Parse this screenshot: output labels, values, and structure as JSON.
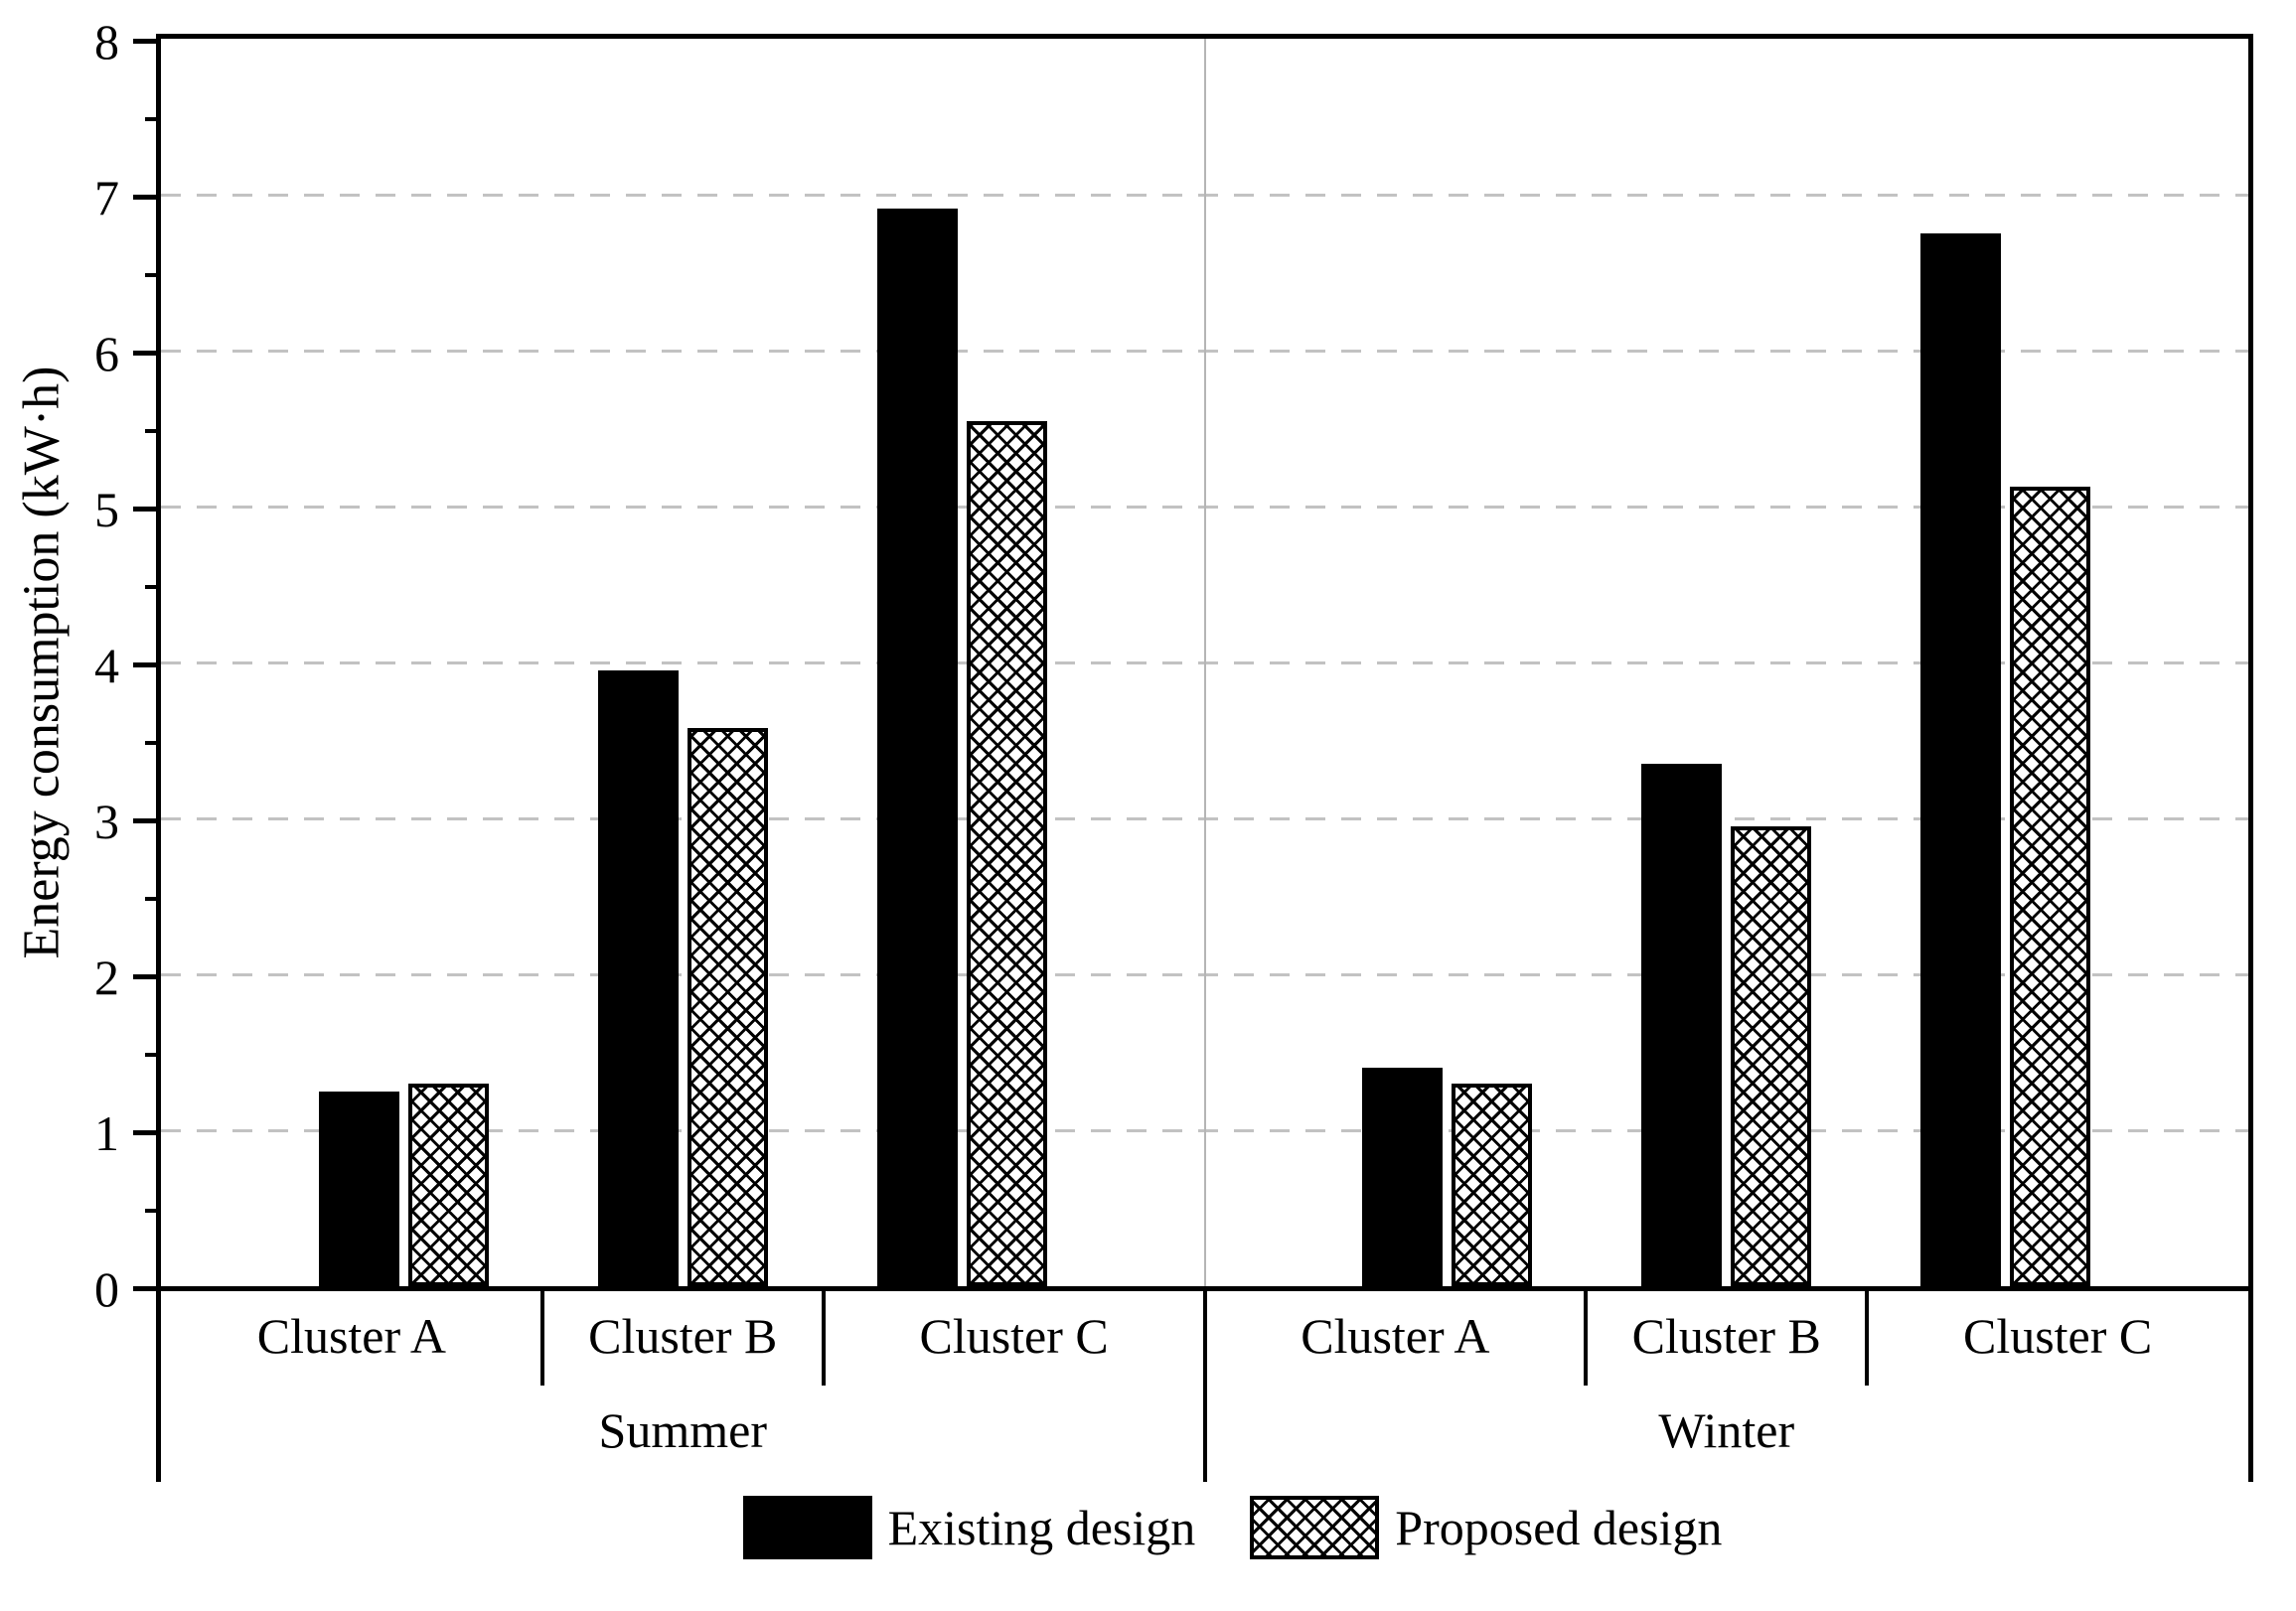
{
  "chart_data": {
    "type": "bar",
    "title": "",
    "ylabel": "Energy consumption (kW·h)",
    "xlabel": "",
    "ylim": [
      0,
      8
    ],
    "ytick_step": 1,
    "minor_tick_step": 0.5,
    "grid": "horizontal dashed lines at integer values",
    "panels": [
      "Summer",
      "Winter"
    ],
    "categories": [
      "Cluster A",
      "Cluster B",
      "Cluster C"
    ],
    "series": [
      {
        "name": "Existing design",
        "style": "solid-black",
        "values": [
          [
            1.25,
            3.95,
            6.91
          ],
          [
            1.4,
            3.35,
            6.75
          ]
        ]
      },
      {
        "name": "Proposed design",
        "style": "crosshatch",
        "values": [
          [
            1.3,
            3.58,
            5.55
          ],
          [
            1.3,
            2.95,
            5.13
          ]
        ]
      }
    ],
    "legend": [
      "Existing design",
      "Proposed design"
    ],
    "legend_position": "bottom-center",
    "colors": {
      "bar_fill": "#000000",
      "hatch_line": "#000000",
      "axis": "#000000",
      "grid": "#c2c2c2",
      "panel_divider": "#b5b5b5",
      "background": "#ffffff",
      "text": "#000000"
    }
  }
}
